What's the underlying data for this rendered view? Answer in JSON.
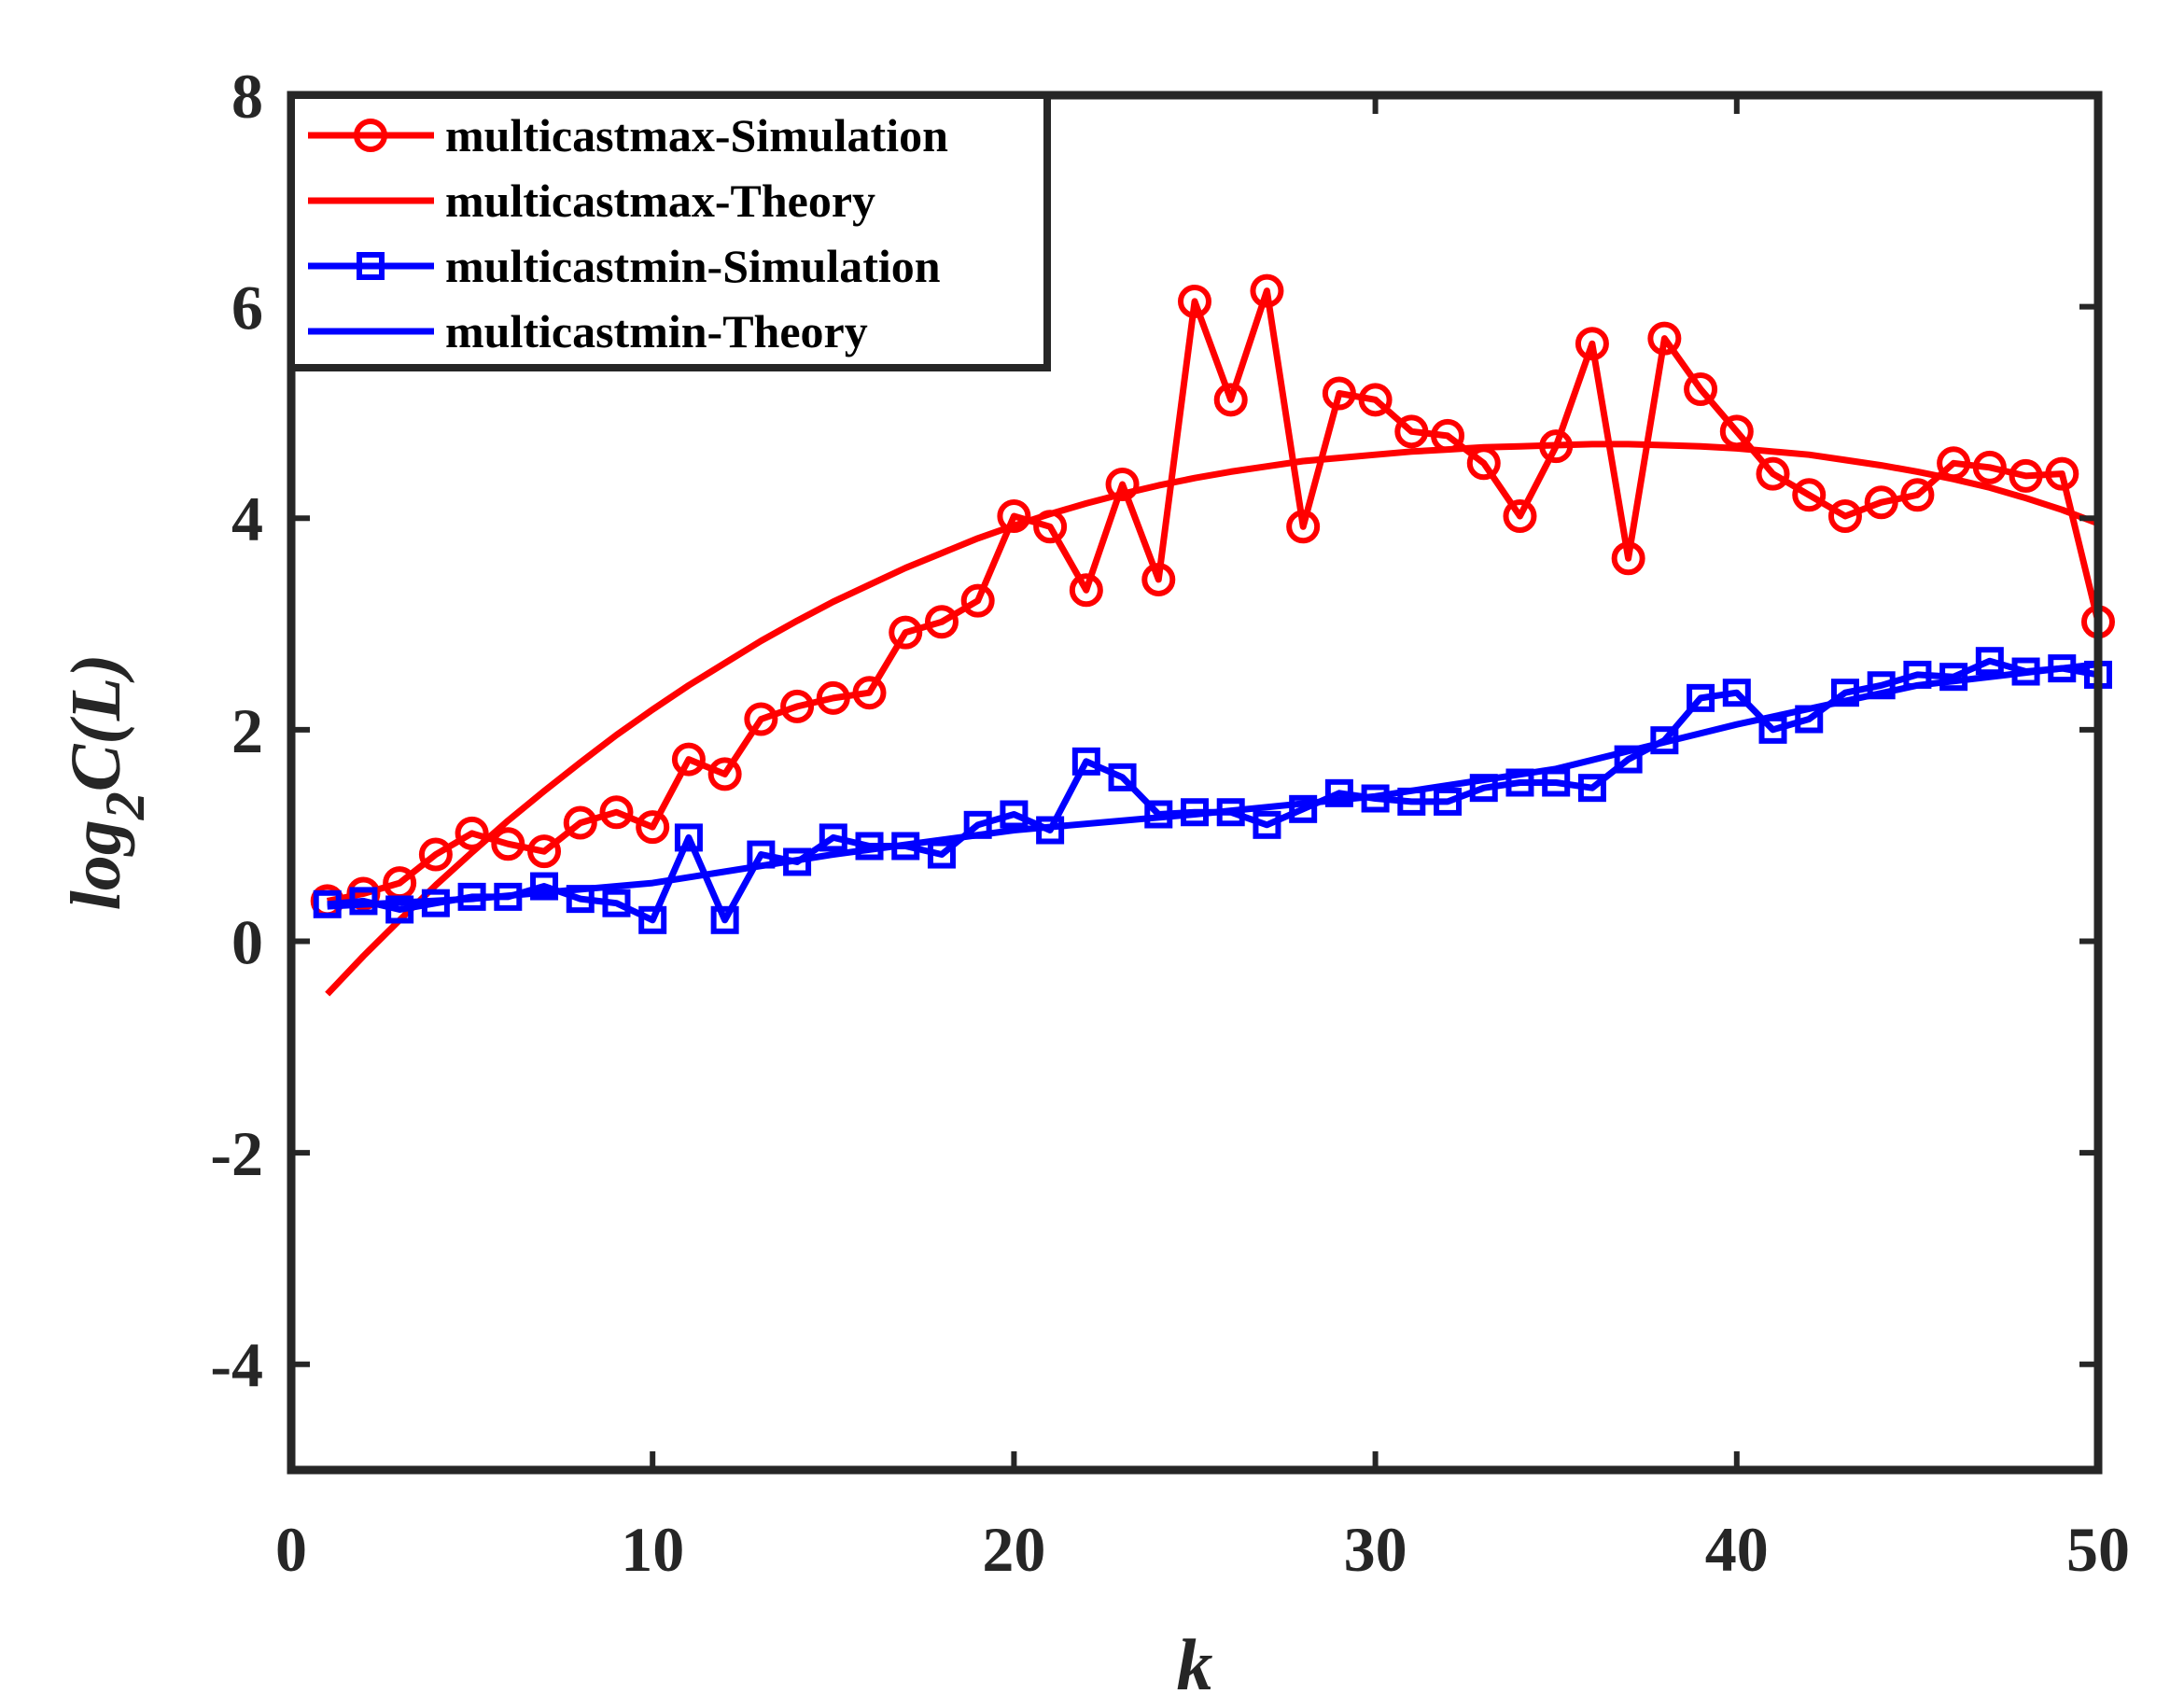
{
  "chart_data": {
    "type": "line",
    "title": "",
    "xlabel": "k",
    "ylabel": "log",
    "ylabel_sub": "2",
    "ylabel_rest": "C(L)",
    "xlim": [
      0,
      50
    ],
    "ylim": [
      -5,
      8
    ],
    "xticks": [
      0,
      10,
      20,
      30,
      40,
      50
    ],
    "yticks": [
      -4,
      -2,
      0,
      2,
      4,
      6,
      8
    ],
    "xtick_labels": [
      "0",
      "10",
      "20",
      "30",
      "40",
      "50"
    ],
    "ytick_labels": [
      "-4",
      "-2",
      "0",
      "2",
      "4",
      "6",
      "8"
    ],
    "grid": false,
    "legend_position": "top-left",
    "series": [
      {
        "name": "multicastmax-Simulation",
        "color": "#ff0000",
        "marker": "circle",
        "x": [
          1,
          2,
          3,
          4,
          5,
          6,
          7,
          8,
          9,
          10,
          11,
          12,
          13,
          14,
          15,
          16,
          17,
          18,
          19,
          20,
          21,
          22,
          23,
          24,
          25,
          26,
          27,
          28,
          29,
          30,
          31,
          32,
          33,
          34,
          35,
          36,
          37,
          38,
          39,
          40,
          41,
          42,
          43,
          44,
          45,
          46,
          47,
          48,
          49,
          50
        ],
        "y": [
          0.38,
          0.45,
          0.55,
          0.82,
          1.02,
          0.92,
          0.85,
          1.12,
          1.22,
          1.08,
          1.72,
          1.58,
          2.1,
          2.22,
          2.3,
          2.35,
          2.92,
          3.02,
          3.22,
          4.02,
          3.92,
          3.32,
          4.32,
          3.42,
          6.05,
          5.12,
          6.15,
          3.92,
          5.18,
          5.12,
          4.82,
          4.78,
          4.52,
          4.02,
          4.68,
          5.65,
          3.62,
          5.7,
          5.22,
          4.82,
          4.42,
          4.22,
          4.02,
          4.15,
          4.22,
          4.52,
          4.48,
          4.4,
          4.42,
          3.02
        ]
      },
      {
        "name": "multicastmax-Theory",
        "color": "#ff0000",
        "marker": "none",
        "x": [
          1,
          2,
          3,
          4,
          5,
          6,
          7,
          8,
          9,
          10,
          11,
          12,
          13,
          14,
          15,
          16,
          17,
          18,
          19,
          20,
          21,
          22,
          23,
          24,
          25,
          26,
          27,
          28,
          29,
          30,
          31,
          32,
          33,
          34,
          35,
          36,
          37,
          38,
          39,
          40,
          41,
          42,
          43,
          44,
          45,
          46,
          47,
          48,
          49,
          50
        ],
        "y": [
          -0.5,
          -0.14,
          0.2,
          0.53,
          0.84,
          1.14,
          1.42,
          1.69,
          1.95,
          2.19,
          2.42,
          2.63,
          2.84,
          3.03,
          3.21,
          3.37,
          3.53,
          3.67,
          3.81,
          3.93,
          4.04,
          4.14,
          4.23,
          4.31,
          4.38,
          4.44,
          4.49,
          4.54,
          4.57,
          4.6,
          4.63,
          4.65,
          4.67,
          4.68,
          4.69,
          4.7,
          4.7,
          4.69,
          4.68,
          4.66,
          4.63,
          4.6,
          4.55,
          4.5,
          4.44,
          4.37,
          4.29,
          4.19,
          4.08,
          3.95
        ]
      },
      {
        "name": "multicastmin-Simulation",
        "color": "#0000ff",
        "marker": "square",
        "x": [
          1,
          2,
          3,
          4,
          5,
          6,
          7,
          8,
          9,
          10,
          11,
          12,
          13,
          14,
          15,
          16,
          17,
          18,
          19,
          20,
          21,
          22,
          23,
          24,
          25,
          26,
          27,
          28,
          29,
          30,
          31,
          32,
          33,
          34,
          35,
          36,
          37,
          38,
          39,
          40,
          41,
          42,
          43,
          44,
          45,
          46,
          47,
          48,
          49,
          50
        ],
        "y": [
          0.35,
          0.38,
          0.3,
          0.36,
          0.42,
          0.42,
          0.52,
          0.4,
          0.36,
          0.2,
          0.98,
          0.2,
          0.82,
          0.75,
          0.98,
          0.9,
          0.9,
          0.82,
          1.1,
          1.2,
          1.05,
          1.7,
          1.55,
          1.2,
          1.22,
          1.22,
          1.1,
          1.25,
          1.4,
          1.35,
          1.32,
          1.32,
          1.45,
          1.5,
          1.5,
          1.45,
          1.72,
          1.9,
          2.3,
          2.35,
          2.0,
          2.1,
          2.35,
          2.42,
          2.52,
          2.5,
          2.65,
          2.55,
          2.58,
          2.52
        ]
      },
      {
        "name": "multicastmin-Theory",
        "color": "#0000ff",
        "marker": "none",
        "x": [
          1,
          5,
          10,
          15,
          20,
          25,
          30,
          35,
          40,
          45,
          50
        ],
        "y": [
          0.33,
          0.4,
          0.55,
          0.82,
          1.05,
          1.2,
          1.37,
          1.63,
          2.05,
          2.42,
          2.62
        ]
      }
    ]
  }
}
